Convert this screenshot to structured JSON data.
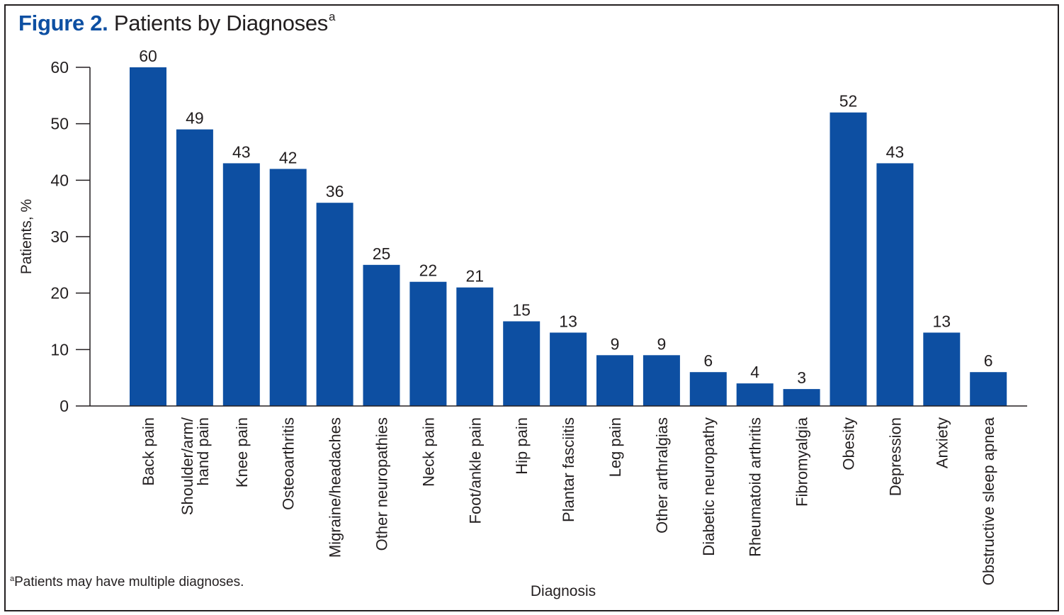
{
  "figure": {
    "number_label": "Figure 2.",
    "title": "Patients by Diagnoses",
    "title_superscript": "a",
    "footnote_marker": "a",
    "footnote": "Patients may have multiple diagnoses."
  },
  "colors": {
    "bar": "#0d4fa2",
    "title_accent": "#0d4fa2",
    "text": "#231f20"
  },
  "chart_data": {
    "type": "bar",
    "title": "Figure 2. Patients by Diagnoses",
    "xlabel": "Diagnosis",
    "ylabel": "Patients, %",
    "ylim": [
      0,
      60
    ],
    "yticks": [
      0,
      10,
      20,
      30,
      40,
      50,
      60
    ],
    "grid": false,
    "legend": "none",
    "categories": [
      [
        "Back pain"
      ],
      [
        "Shoulder/arm/",
        "hand pain"
      ],
      [
        "Knee pain"
      ],
      [
        "Osteoarthritis"
      ],
      [
        "Migraine/headaches"
      ],
      [
        "Other neuropathies"
      ],
      [
        "Neck pain"
      ],
      [
        "Foot/ankle pain"
      ],
      [
        "Hip pain"
      ],
      [
        "Plantar fasciitis"
      ],
      [
        "Leg pain"
      ],
      [
        "Other arthralgias"
      ],
      [
        "Diabetic neuropathy"
      ],
      [
        "Rheumatoid arthritis"
      ],
      [
        "Fibromyalgia"
      ],
      [
        "Obesity"
      ],
      [
        "Depression"
      ],
      [
        "Anxiety"
      ],
      [
        "Obstructive sleep apnea"
      ]
    ],
    "values": [
      60,
      49,
      43,
      42,
      36,
      25,
      22,
      21,
      15,
      13,
      9,
      9,
      6,
      4,
      3,
      52,
      43,
      13,
      6
    ]
  }
}
